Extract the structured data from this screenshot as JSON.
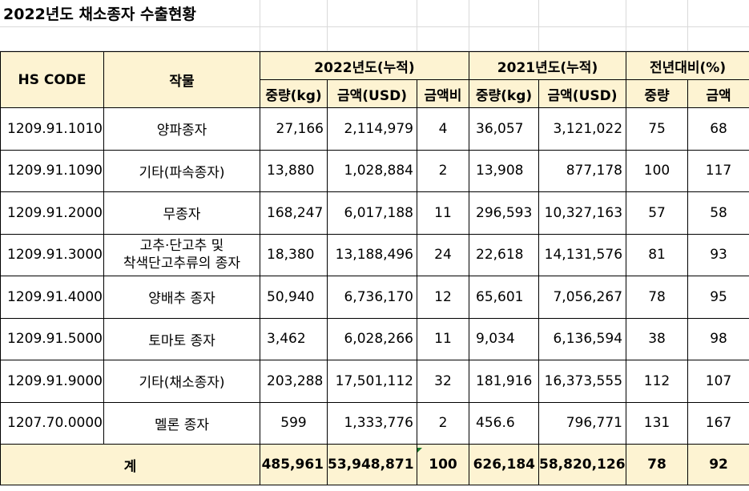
{
  "title": "2022년도 채소종자 수출현황",
  "header": {
    "hs_code": "HS CODE",
    "crop": "작물",
    "group_2022": "2022년도(누적)",
    "group_2021": "2021년도(누적)",
    "group_yoy": "전년대비(%)",
    "weight_kg": "중량(kg)",
    "amount_usd": "금액(USD)",
    "amount_ratio": "금액비",
    "weight": "중량",
    "amount": "금액"
  },
  "rows": [
    {
      "hs": "1209.91.1010",
      "crop": "양파종자",
      "w22": "27,166",
      "a22": "2,114,979",
      "ratio": "4",
      "w21": "36,057",
      "a21": "3,121,022",
      "yw": "75",
      "ya": "68"
    },
    {
      "hs": "1209.91.1090",
      "crop": "기타(파속종자)",
      "w22": "13,880",
      "a22": "1,028,884",
      "ratio": "2",
      "w21": "13,908",
      "a21": "877,178",
      "yw": "100",
      "ya": "117"
    },
    {
      "hs": "1209.91.2000",
      "crop": "무종자",
      "w22": "168,247",
      "a22": "6,017,188",
      "ratio": "11",
      "w21": "296,593",
      "a21": "10,327,163",
      "yw": "57",
      "ya": "58"
    },
    {
      "hs": "1209.91.3000",
      "crop_line1": "고추·단고추 및",
      "crop_line2": "착색단고추류의 종자",
      "w22": "18,380",
      "a22": "13,188,496",
      "ratio": "24",
      "w21": "22,618",
      "a21": "14,131,576",
      "yw": "81",
      "ya": "93"
    },
    {
      "hs": "1209.91.4000",
      "crop": "양배추 종자",
      "w22": "50,940",
      "a22": "6,736,170",
      "ratio": "12",
      "w21": "65,601",
      "a21": "7,056,267",
      "yw": "78",
      "ya": "95"
    },
    {
      "hs": "1209.91.5000",
      "crop": "토마토 종자",
      "w22": "3,462",
      "a22": "6,028,266",
      "ratio": "11",
      "w21": "9,034",
      "a21": "6,136,594",
      "yw": "38",
      "ya": "98"
    },
    {
      "hs": "1209.91.9000",
      "crop": "기타(채소종자)",
      "w22": "203,288",
      "a22": "17,501,112",
      "ratio": "32",
      "w21": "181,916",
      "a21": "16,373,555",
      "yw": "112",
      "ya": "107"
    },
    {
      "hs": "1207.70.0000",
      "crop": "멜론 종자",
      "w22": "599",
      "a22": "1,333,776",
      "ratio": "2",
      "w21": "456.6",
      "a21": "796,771",
      "yw": "131",
      "ya": "167"
    }
  ],
  "total": {
    "label": "계",
    "w22": "485,961",
    "a22": "53,948,871",
    "ratio": "100",
    "w21": "626,184",
    "a21": "58,820,126",
    "yw": "78",
    "ya": "92"
  },
  "colors": {
    "header_bg": "#fdf3d2",
    "comment_marker": "#1a7a2e"
  }
}
